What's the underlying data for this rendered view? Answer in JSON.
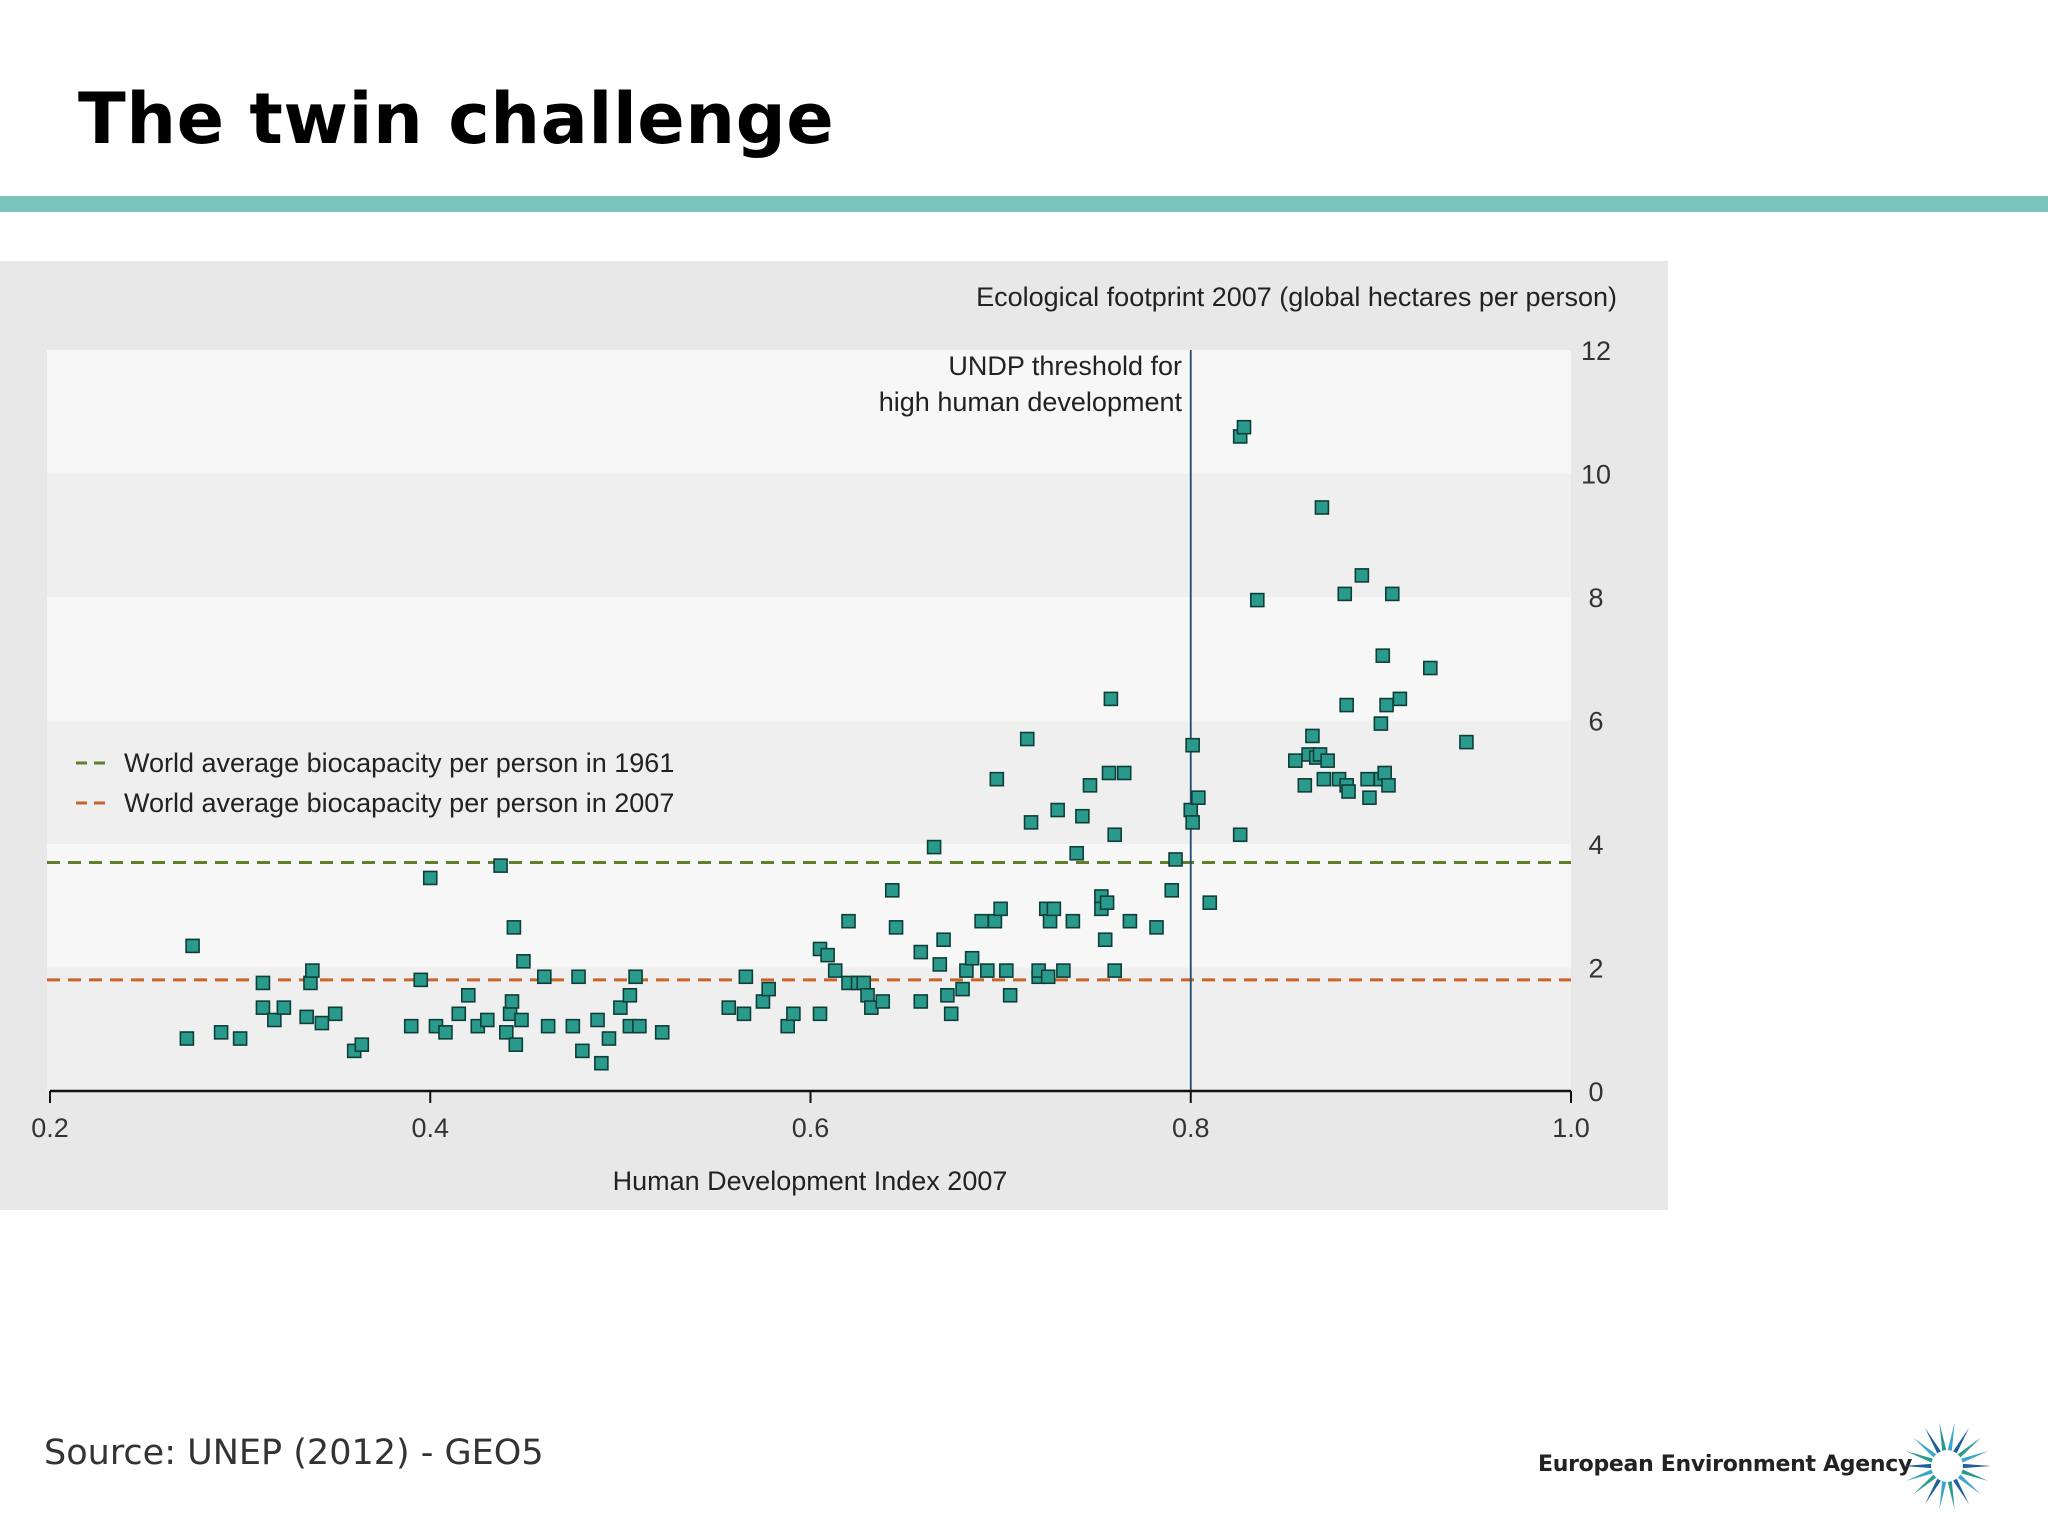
{
  "slide": {
    "title": "The twin challenge",
    "source": "Source: UNEP (2012) - GEO5",
    "logo_text": "European Environment Agency",
    "accent_color": "#7bc4bd"
  },
  "chart_data": {
    "type": "scatter",
    "title": "",
    "ylabel": "Ecological footprint 2007 (global hectares per person)",
    "xlabel": "Human Development Index 2007",
    "xlim": [
      0.2,
      1.0
    ],
    "ylim": [
      0,
      12
    ],
    "xticks": [
      "0.2",
      "0.4",
      "0.6",
      "0.8",
      "1.0"
    ],
    "yticks": [
      "0",
      "2",
      "4",
      "6",
      "8",
      "10",
      "12"
    ],
    "x_tick_values": [
      0.2,
      0.4,
      0.6,
      0.8,
      1.0
    ],
    "y_tick_values": [
      0,
      2,
      4,
      6,
      8,
      10,
      12
    ],
    "grid": "alternating horizontal bands",
    "legend_position": "left",
    "threshold": {
      "x": 0.8,
      "label_line1": "UNDP threshold for",
      "label_line2": "high human development"
    },
    "reference_lines": [
      {
        "name": "World average biocapacity  per person in 1961",
        "y": 3.7,
        "color": "#5f7f2a"
      },
      {
        "name": "World average biocapacity per person in 2007",
        "y": 1.8,
        "color": "#c8652a"
      }
    ],
    "marker_color": "#2a9a8c",
    "points": [
      [
        0.272,
        0.85
      ],
      [
        0.29,
        0.95
      ],
      [
        0.3,
        0.85
      ],
      [
        0.275,
        2.35
      ],
      [
        0.312,
        1.75
      ],
      [
        0.312,
        1.35
      ],
      [
        0.318,
        1.15
      ],
      [
        0.323,
        1.35
      ],
      [
        0.335,
        1.2
      ],
      [
        0.337,
        1.75
      ],
      [
        0.338,
        1.95
      ],
      [
        0.343,
        1.1
      ],
      [
        0.35,
        1.25
      ],
      [
        0.36,
        0.65
      ],
      [
        0.364,
        0.75
      ],
      [
        0.395,
        1.8
      ],
      [
        0.39,
        1.05
      ],
      [
        0.4,
        3.45
      ],
      [
        0.403,
        1.05
      ],
      [
        0.408,
        0.95
      ],
      [
        0.415,
        1.25
      ],
      [
        0.42,
        1.55
      ],
      [
        0.425,
        1.05
      ],
      [
        0.43,
        1.15
      ],
      [
        0.437,
        3.65
      ],
      [
        0.44,
        0.95
      ],
      [
        0.442,
        1.25
      ],
      [
        0.443,
        1.45
      ],
      [
        0.445,
        0.75
      ],
      [
        0.444,
        2.65
      ],
      [
        0.448,
        1.15
      ],
      [
        0.449,
        2.1
      ],
      [
        0.46,
        1.85
      ],
      [
        0.462,
        1.05
      ],
      [
        0.475,
        1.05
      ],
      [
        0.478,
        1.85
      ],
      [
        0.48,
        0.65
      ],
      [
        0.488,
        1.15
      ],
      [
        0.49,
        0.45
      ],
      [
        0.494,
        0.85
      ],
      [
        0.5,
        1.35
      ],
      [
        0.505,
        1.55
      ],
      [
        0.508,
        1.85
      ],
      [
        0.505,
        1.05
      ],
      [
        0.51,
        1.05
      ],
      [
        0.522,
        0.95
      ],
      [
        0.557,
        1.35
      ],
      [
        0.565,
        1.25
      ],
      [
        0.566,
        1.85
      ],
      [
        0.575,
        1.45
      ],
      [
        0.578,
        1.65
      ],
      [
        0.588,
        1.05
      ],
      [
        0.591,
        1.25
      ],
      [
        0.605,
        1.25
      ],
      [
        0.605,
        2.3
      ],
      [
        0.609,
        2.2
      ],
      [
        0.613,
        1.95
      ],
      [
        0.62,
        2.75
      ],
      [
        0.62,
        1.75
      ],
      [
        0.625,
        1.75
      ],
      [
        0.628,
        1.75
      ],
      [
        0.63,
        1.55
      ],
      [
        0.632,
        1.35
      ],
      [
        0.638,
        1.45
      ],
      [
        0.643,
        3.25
      ],
      [
        0.645,
        2.65
      ],
      [
        0.658,
        2.25
      ],
      [
        0.658,
        1.45
      ],
      [
        0.665,
        3.95
      ],
      [
        0.668,
        2.05
      ],
      [
        0.67,
        2.45
      ],
      [
        0.672,
        1.55
      ],
      [
        0.674,
        1.25
      ],
      [
        0.68,
        1.65
      ],
      [
        0.682,
        1.95
      ],
      [
        0.685,
        2.15
      ],
      [
        0.69,
        2.75
      ],
      [
        0.693,
        1.95
      ],
      [
        0.697,
        2.75
      ],
      [
        0.698,
        5.05
      ],
      [
        0.7,
        2.95
      ],
      [
        0.703,
        1.95
      ],
      [
        0.705,
        1.55
      ],
      [
        0.714,
        5.7
      ],
      [
        0.716,
        4.35
      ],
      [
        0.72,
        1.85
      ],
      [
        0.72,
        1.95
      ],
      [
        0.724,
        2.95
      ],
      [
        0.725,
        1.85
      ],
      [
        0.726,
        2.75
      ],
      [
        0.728,
        2.95
      ],
      [
        0.73,
        4.55
      ],
      [
        0.733,
        1.95
      ],
      [
        0.738,
        2.75
      ],
      [
        0.74,
        3.85
      ],
      [
        0.743,
        4.45
      ],
      [
        0.747,
        4.95
      ],
      [
        0.753,
        3.15
      ],
      [
        0.753,
        2.95
      ],
      [
        0.755,
        2.45
      ],
      [
        0.757,
        5.15
      ],
      [
        0.758,
        6.35
      ],
      [
        0.756,
        3.05
      ],
      [
        0.76,
        4.15
      ],
      [
        0.76,
        1.95
      ],
      [
        0.765,
        5.15
      ],
      [
        0.768,
        2.75
      ],
      [
        0.782,
        2.65
      ],
      [
        0.79,
        3.25
      ],
      [
        0.792,
        3.75
      ],
      [
        0.8,
        4.55
      ],
      [
        0.801,
        4.35
      ],
      [
        0.801,
        5.6
      ],
      [
        0.804,
        4.75
      ],
      [
        0.81,
        3.05
      ],
      [
        0.826,
        10.6
      ],
      [
        0.828,
        10.75
      ],
      [
        0.826,
        4.15
      ],
      [
        0.835,
        7.95
      ],
      [
        0.855,
        5.35
      ],
      [
        0.86,
        4.95
      ],
      [
        0.862,
        5.45
      ],
      [
        0.864,
        5.75
      ],
      [
        0.866,
        5.4
      ],
      [
        0.868,
        5.45
      ],
      [
        0.869,
        9.45
      ],
      [
        0.87,
        5.05
      ],
      [
        0.872,
        5.35
      ],
      [
        0.878,
        5.05
      ],
      [
        0.881,
        8.05
      ],
      [
        0.882,
        6.25
      ],
      [
        0.882,
        4.95
      ],
      [
        0.883,
        4.85
      ],
      [
        0.89,
        8.35
      ],
      [
        0.893,
        5.05
      ],
      [
        0.894,
        4.75
      ],
      [
        0.9,
        5.05
      ],
      [
        0.9,
        5.95
      ],
      [
        0.901,
        7.05
      ],
      [
        0.902,
        5.15
      ],
      [
        0.903,
        6.25
      ],
      [
        0.904,
        4.95
      ],
      [
        0.906,
        8.05
      ],
      [
        0.91,
        6.35
      ],
      [
        0.926,
        6.85
      ],
      [
        0.945,
        5.65
      ]
    ]
  }
}
